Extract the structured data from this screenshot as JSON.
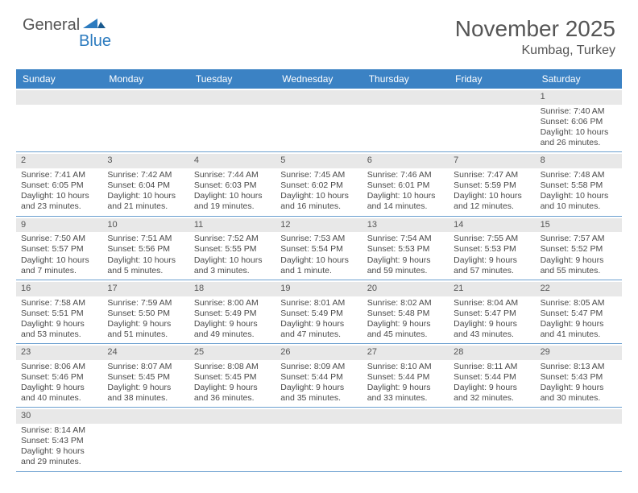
{
  "logo": {
    "part1": "General",
    "part2": "Blue"
  },
  "title": "November 2025",
  "location": "Kumbag, Turkey",
  "colors": {
    "header_bg": "#3b82c4",
    "header_text": "#ffffff",
    "row_border": "#6ca0d0",
    "daynum_bg": "#e8e8e8",
    "text": "#4a4a4a",
    "logo_blue": "#2c7bbf"
  },
  "day_names": [
    "Sunday",
    "Monday",
    "Tuesday",
    "Wednesday",
    "Thursday",
    "Friday",
    "Saturday"
  ],
  "weeks": [
    [
      {
        "day": "",
        "sunrise": "",
        "sunset": "",
        "daylight": ""
      },
      {
        "day": "",
        "sunrise": "",
        "sunset": "",
        "daylight": ""
      },
      {
        "day": "",
        "sunrise": "",
        "sunset": "",
        "daylight": ""
      },
      {
        "day": "",
        "sunrise": "",
        "sunset": "",
        "daylight": ""
      },
      {
        "day": "",
        "sunrise": "",
        "sunset": "",
        "daylight": ""
      },
      {
        "day": "",
        "sunrise": "",
        "sunset": "",
        "daylight": ""
      },
      {
        "day": "1",
        "sunrise": "Sunrise: 7:40 AM",
        "sunset": "Sunset: 6:06 PM",
        "daylight": "Daylight: 10 hours and 26 minutes."
      }
    ],
    [
      {
        "day": "2",
        "sunrise": "Sunrise: 7:41 AM",
        "sunset": "Sunset: 6:05 PM",
        "daylight": "Daylight: 10 hours and 23 minutes."
      },
      {
        "day": "3",
        "sunrise": "Sunrise: 7:42 AM",
        "sunset": "Sunset: 6:04 PM",
        "daylight": "Daylight: 10 hours and 21 minutes."
      },
      {
        "day": "4",
        "sunrise": "Sunrise: 7:44 AM",
        "sunset": "Sunset: 6:03 PM",
        "daylight": "Daylight: 10 hours and 19 minutes."
      },
      {
        "day": "5",
        "sunrise": "Sunrise: 7:45 AM",
        "sunset": "Sunset: 6:02 PM",
        "daylight": "Daylight: 10 hours and 16 minutes."
      },
      {
        "day": "6",
        "sunrise": "Sunrise: 7:46 AM",
        "sunset": "Sunset: 6:01 PM",
        "daylight": "Daylight: 10 hours and 14 minutes."
      },
      {
        "day": "7",
        "sunrise": "Sunrise: 7:47 AM",
        "sunset": "Sunset: 5:59 PM",
        "daylight": "Daylight: 10 hours and 12 minutes."
      },
      {
        "day": "8",
        "sunrise": "Sunrise: 7:48 AM",
        "sunset": "Sunset: 5:58 PM",
        "daylight": "Daylight: 10 hours and 10 minutes."
      }
    ],
    [
      {
        "day": "9",
        "sunrise": "Sunrise: 7:50 AM",
        "sunset": "Sunset: 5:57 PM",
        "daylight": "Daylight: 10 hours and 7 minutes."
      },
      {
        "day": "10",
        "sunrise": "Sunrise: 7:51 AM",
        "sunset": "Sunset: 5:56 PM",
        "daylight": "Daylight: 10 hours and 5 minutes."
      },
      {
        "day": "11",
        "sunrise": "Sunrise: 7:52 AM",
        "sunset": "Sunset: 5:55 PM",
        "daylight": "Daylight: 10 hours and 3 minutes."
      },
      {
        "day": "12",
        "sunrise": "Sunrise: 7:53 AM",
        "sunset": "Sunset: 5:54 PM",
        "daylight": "Daylight: 10 hours and 1 minute."
      },
      {
        "day": "13",
        "sunrise": "Sunrise: 7:54 AM",
        "sunset": "Sunset: 5:53 PM",
        "daylight": "Daylight: 9 hours and 59 minutes."
      },
      {
        "day": "14",
        "sunrise": "Sunrise: 7:55 AM",
        "sunset": "Sunset: 5:53 PM",
        "daylight": "Daylight: 9 hours and 57 minutes."
      },
      {
        "day": "15",
        "sunrise": "Sunrise: 7:57 AM",
        "sunset": "Sunset: 5:52 PM",
        "daylight": "Daylight: 9 hours and 55 minutes."
      }
    ],
    [
      {
        "day": "16",
        "sunrise": "Sunrise: 7:58 AM",
        "sunset": "Sunset: 5:51 PM",
        "daylight": "Daylight: 9 hours and 53 minutes."
      },
      {
        "day": "17",
        "sunrise": "Sunrise: 7:59 AM",
        "sunset": "Sunset: 5:50 PM",
        "daylight": "Daylight: 9 hours and 51 minutes."
      },
      {
        "day": "18",
        "sunrise": "Sunrise: 8:00 AM",
        "sunset": "Sunset: 5:49 PM",
        "daylight": "Daylight: 9 hours and 49 minutes."
      },
      {
        "day": "19",
        "sunrise": "Sunrise: 8:01 AM",
        "sunset": "Sunset: 5:49 PM",
        "daylight": "Daylight: 9 hours and 47 minutes."
      },
      {
        "day": "20",
        "sunrise": "Sunrise: 8:02 AM",
        "sunset": "Sunset: 5:48 PM",
        "daylight": "Daylight: 9 hours and 45 minutes."
      },
      {
        "day": "21",
        "sunrise": "Sunrise: 8:04 AM",
        "sunset": "Sunset: 5:47 PM",
        "daylight": "Daylight: 9 hours and 43 minutes."
      },
      {
        "day": "22",
        "sunrise": "Sunrise: 8:05 AM",
        "sunset": "Sunset: 5:47 PM",
        "daylight": "Daylight: 9 hours and 41 minutes."
      }
    ],
    [
      {
        "day": "23",
        "sunrise": "Sunrise: 8:06 AM",
        "sunset": "Sunset: 5:46 PM",
        "daylight": "Daylight: 9 hours and 40 minutes."
      },
      {
        "day": "24",
        "sunrise": "Sunrise: 8:07 AM",
        "sunset": "Sunset: 5:45 PM",
        "daylight": "Daylight: 9 hours and 38 minutes."
      },
      {
        "day": "25",
        "sunrise": "Sunrise: 8:08 AM",
        "sunset": "Sunset: 5:45 PM",
        "daylight": "Daylight: 9 hours and 36 minutes."
      },
      {
        "day": "26",
        "sunrise": "Sunrise: 8:09 AM",
        "sunset": "Sunset: 5:44 PM",
        "daylight": "Daylight: 9 hours and 35 minutes."
      },
      {
        "day": "27",
        "sunrise": "Sunrise: 8:10 AM",
        "sunset": "Sunset: 5:44 PM",
        "daylight": "Daylight: 9 hours and 33 minutes."
      },
      {
        "day": "28",
        "sunrise": "Sunrise: 8:11 AM",
        "sunset": "Sunset: 5:44 PM",
        "daylight": "Daylight: 9 hours and 32 minutes."
      },
      {
        "day": "29",
        "sunrise": "Sunrise: 8:13 AM",
        "sunset": "Sunset: 5:43 PM",
        "daylight": "Daylight: 9 hours and 30 minutes."
      }
    ],
    [
      {
        "day": "30",
        "sunrise": "Sunrise: 8:14 AM",
        "sunset": "Sunset: 5:43 PM",
        "daylight": "Daylight: 9 hours and 29 minutes."
      },
      {
        "day": "",
        "sunrise": "",
        "sunset": "",
        "daylight": ""
      },
      {
        "day": "",
        "sunrise": "",
        "sunset": "",
        "daylight": ""
      },
      {
        "day": "",
        "sunrise": "",
        "sunset": "",
        "daylight": ""
      },
      {
        "day": "",
        "sunrise": "",
        "sunset": "",
        "daylight": ""
      },
      {
        "day": "",
        "sunrise": "",
        "sunset": "",
        "daylight": ""
      },
      {
        "day": "",
        "sunrise": "",
        "sunset": "",
        "daylight": ""
      }
    ]
  ]
}
